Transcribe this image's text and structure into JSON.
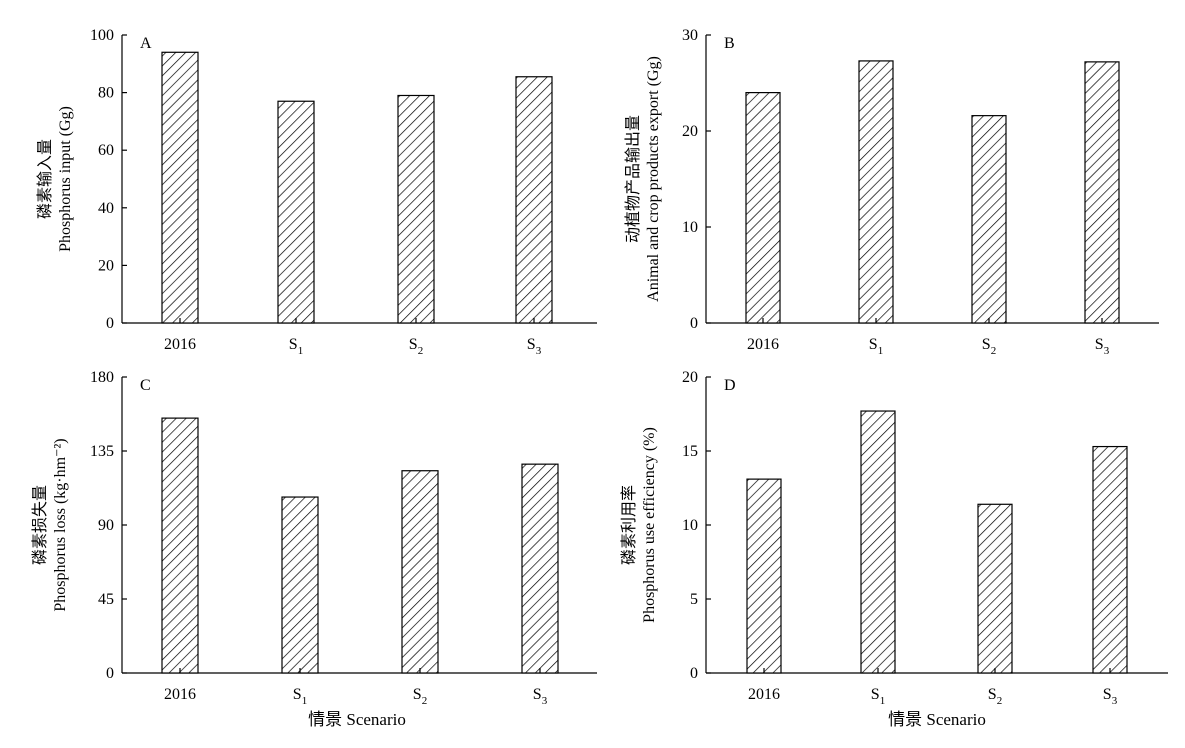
{
  "figure": {
    "bottom_xlabel": "情景 Scenario"
  },
  "chart_data": [
    {
      "panel": "A",
      "type": "bar",
      "categories": [
        "2016",
        "S1",
        "S2",
        "S3"
      ],
      "values": [
        94,
        77,
        79,
        85.5
      ],
      "ylabel_cn": "磷素输入量",
      "ylabel_en": "Phosphorus input (Gg)",
      "ylim": [
        0,
        100
      ],
      "yticks": [
        0,
        20,
        40,
        60,
        80,
        100
      ],
      "fill": "hatch-diagonal",
      "grid": false
    },
    {
      "panel": "B",
      "type": "bar",
      "categories": [
        "2016",
        "S1",
        "S2",
        "S3"
      ],
      "values": [
        24,
        27.3,
        21.6,
        27.2
      ],
      "ylabel_cn": "动植物产品输出量",
      "ylabel_en": "Animal and crop products export (Gg)",
      "ylim": [
        0,
        30
      ],
      "yticks": [
        0,
        10,
        20,
        30
      ],
      "fill": "hatch-diagonal",
      "grid": false
    },
    {
      "panel": "C",
      "type": "bar",
      "categories": [
        "2016",
        "S1",
        "S2",
        "S3"
      ],
      "values": [
        155,
        107,
        123,
        127
      ],
      "ylabel_cn": "磷素损失量",
      "ylabel_en": "Phosphorus loss (kg·hm⁻²)",
      "ylim": [
        0,
        180
      ],
      "yticks": [
        0,
        45,
        90,
        135,
        180
      ],
      "fill": "hatch-diagonal",
      "grid": false
    },
    {
      "panel": "D",
      "type": "bar",
      "categories": [
        "2016",
        "S1",
        "S2",
        "S3"
      ],
      "values": [
        13.1,
        17.7,
        11.4,
        15.3
      ],
      "ylabel_cn": "磷素利用率",
      "ylabel_en": "Phosphorus use efficiency (%)",
      "ylim": [
        0,
        20
      ],
      "yticks": [
        0,
        5,
        10,
        15,
        20
      ],
      "fill": "hatch-diagonal",
      "grid": false
    }
  ]
}
